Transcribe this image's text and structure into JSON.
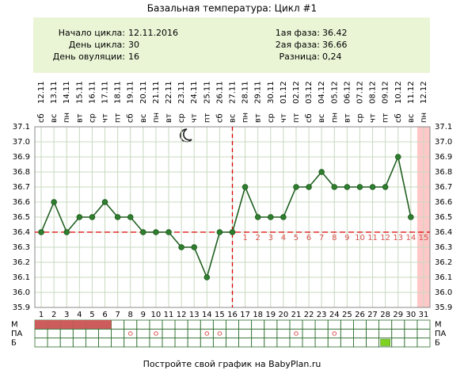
{
  "chart_data": {
    "type": "line",
    "title": "Базальная температура: Цикл #1",
    "info_left": [
      {
        "label": "Начало цикла:",
        "value": "12.11.2016"
      },
      {
        "label": "День цикла:",
        "value": "30"
      },
      {
        "label": "День овуляции:",
        "value": "16"
      }
    ],
    "info_right": [
      {
        "label": "1ая фаза:",
        "value": "36.42"
      },
      {
        "label": "2ая фаза:",
        "value": "36.66"
      },
      {
        "label": "Разница:",
        "value": "0,24"
      }
    ],
    "weekdays": [
      "сб",
      "вс",
      "пн",
      "вт",
      "ср",
      "чт",
      "пт",
      "сб",
      "вс",
      "пн",
      "вт",
      "ср",
      "чт",
      "пт",
      "сб",
      "вс",
      "пн",
      "вт",
      "ср",
      "чт",
      "пт",
      "сб",
      "вс",
      "пн",
      "вт",
      "ср",
      "чт",
      "пт",
      "сб",
      "вс",
      "пн"
    ],
    "dates": [
      "12.11",
      "13.11",
      "14.11",
      "15.11",
      "16.11",
      "17.11",
      "18.11",
      "19.11",
      "20.11",
      "21.11",
      "22.11",
      "23.11",
      "24.11",
      "25.11",
      "26.11",
      "27.11",
      "28.11",
      "29.11",
      "30.11",
      "01.12",
      "02.12",
      "03.12",
      "04.12",
      "05.12",
      "06.12",
      "07.12",
      "08.12",
      "09.12",
      "10.12",
      "11.12",
      "12.12"
    ],
    "categories": [
      "1",
      "2",
      "3",
      "4",
      "5",
      "6",
      "7",
      "8",
      "9",
      "10",
      "11",
      "12",
      "13",
      "14",
      "15",
      "16",
      "17",
      "18",
      "19",
      "20",
      "21",
      "22",
      "23",
      "24",
      "25",
      "26",
      "27",
      "28",
      "29",
      "30",
      "31"
    ],
    "series": [
      {
        "name": "Температура",
        "color": "#1f5f1f",
        "values": [
          36.4,
          36.6,
          36.4,
          36.5,
          36.5,
          36.6,
          36.5,
          36.5,
          36.4,
          36.4,
          36.4,
          36.3,
          36.3,
          36.1,
          36.4,
          36.4,
          36.7,
          36.5,
          36.5,
          36.5,
          36.7,
          36.7,
          36.8,
          36.7,
          36.7,
          36.7,
          36.7,
          36.7,
          36.9,
          36.5,
          null
        ]
      }
    ],
    "luteal_day_labels": [
      null,
      null,
      null,
      null,
      null,
      null,
      null,
      null,
      null,
      null,
      null,
      null,
      null,
      null,
      null,
      null,
      1,
      2,
      3,
      4,
      5,
      6,
      7,
      8,
      9,
      10,
      11,
      12,
      13,
      14,
      15
    ],
    "coverline": 36.4,
    "ovulation_day": 16,
    "highlight_day": 31,
    "ylim": [
      35.9,
      37.1
    ],
    "yticks": [
      35.9,
      {
        "value": 36,
        "label": "36.0"
      },
      36.1,
      36.2,
      36.3,
      36.4,
      36.5,
      36.6,
      36.7,
      36.8,
      36.9,
      {
        "value": 37,
        "label": "37.0"
      },
      37.1
    ],
    "grid": true,
    "marker_rows": [
      {
        "label": "М",
        "style": "fill",
        "color": "#cd5c5c",
        "days": [
          1,
          2,
          3,
          4,
          5,
          6
        ]
      },
      {
        "label": "ПА",
        "style": "circle",
        "color": "#d9534f",
        "days": [
          8,
          10,
          14,
          15,
          21,
          24
        ]
      },
      {
        "label": "Б",
        "style": "badge",
        "color": "#7ed321",
        "days": [
          28
        ]
      }
    ],
    "footer": "Постройте свой график на BabyPlan.ru"
  }
}
